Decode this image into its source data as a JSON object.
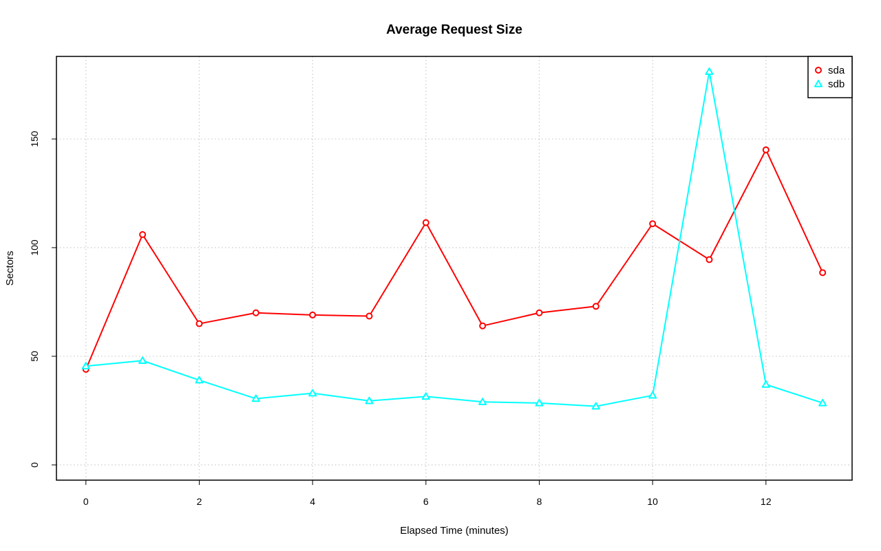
{
  "chart_data": {
    "type": "line",
    "title": "Average Request Size",
    "xlabel": "Elapsed Time (minutes)",
    "ylabel": "Sectors",
    "x": [
      0,
      1,
      2,
      3,
      4,
      5,
      6,
      7,
      8,
      9,
      10,
      11,
      12,
      13
    ],
    "xlim": [
      -0.52,
      13.52
    ],
    "ylim": [
      -7.0,
      188.0
    ],
    "xticks": [
      0,
      2,
      4,
      6,
      8,
      10,
      12
    ],
    "xtick_labels": [
      "0",
      "2",
      "4",
      "6",
      "8",
      "10",
      "12"
    ],
    "yticks": [
      0,
      50,
      100,
      150
    ],
    "ytick_labels": [
      "0",
      "50",
      "100",
      "150"
    ],
    "grid": true,
    "legend_position": "top-right",
    "series": [
      {
        "name": "sda",
        "color": "#ff0000",
        "marker": "circle",
        "values": [
          44,
          106,
          65,
          70,
          69,
          68.5,
          111.5,
          64,
          70,
          73,
          111,
          94.5,
          145,
          88.5
        ]
      },
      {
        "name": "sdb",
        "color": "#00ffff",
        "marker": "triangle",
        "values": [
          45.5,
          48,
          39,
          30.5,
          33,
          29.5,
          31.5,
          29,
          28.5,
          27,
          32,
          181,
          37,
          28.5
        ]
      }
    ]
  }
}
